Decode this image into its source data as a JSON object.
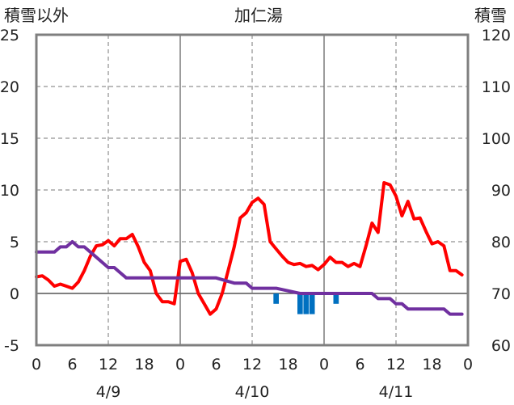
{
  "chart_data": {
    "type": "line",
    "title": "加仁湯",
    "ylabel_left": "積雪以外",
    "ylabel_right": "積雪",
    "y_left": {
      "min": -5,
      "max": 25,
      "ticks": [
        -5,
        0,
        5,
        10,
        15,
        20,
        25
      ]
    },
    "y_right": {
      "min": 60,
      "max": 120,
      "ticks": [
        60,
        70,
        80,
        90,
        100,
        110,
        120
      ]
    },
    "x": {
      "min": 0,
      "max": 72,
      "unit": "hour",
      "tick_positions": [
        0,
        6,
        12,
        18,
        24,
        30,
        36,
        42,
        48,
        54,
        60,
        66,
        72
      ],
      "tick_labels": [
        "0",
        "6",
        "12",
        "18",
        "0",
        "6",
        "12",
        "18",
        "0",
        "6",
        "12",
        "18",
        "0"
      ]
    },
    "dates": [
      {
        "label": "4/9",
        "at": 12
      },
      {
        "label": "4/10",
        "at": 36
      },
      {
        "label": "4/11",
        "at": 60
      }
    ],
    "day_boundaries": [
      24,
      48
    ],
    "grid": true,
    "series": [
      {
        "axis": "left",
        "style": "line",
        "color": "#ff0000",
        "x": [
          0,
          1,
          2,
          3,
          4,
          5,
          6,
          7,
          8,
          9,
          10,
          11,
          12,
          13,
          14,
          15,
          16,
          17,
          18,
          19,
          20,
          21,
          22,
          23,
          24,
          25,
          26,
          27,
          28,
          29,
          30,
          31,
          32,
          33,
          34,
          35,
          36,
          37,
          38,
          39,
          40,
          41,
          42,
          43,
          44,
          45,
          46,
          47,
          48,
          49,
          50,
          51,
          52,
          53,
          54,
          55,
          56,
          57,
          58,
          59,
          60,
          61,
          62,
          63,
          64,
          65,
          66,
          67,
          68,
          69,
          70,
          71,
          72
        ],
        "y": [
          1.6,
          1.7,
          1.3,
          0.7,
          0.9,
          0.7,
          0.5,
          1.1,
          2.2,
          3.6,
          4.6,
          4.7,
          5.1,
          4.6,
          5.3,
          5.3,
          5.7,
          4.5,
          3.0,
          2.2,
          0.0,
          -0.8,
          -0.8,
          -1.0,
          3.1,
          3.3,
          2.0,
          0.0,
          -1.0,
          -2.0,
          -1.5,
          0.0,
          2.2,
          4.5,
          7.3,
          7.8,
          8.8,
          9.2,
          8.6,
          5.0,
          4.3,
          3.6,
          3.0,
          2.8,
          2.9,
          2.6,
          2.7,
          2.3,
          2.8,
          3.5,
          3.0,
          3.0,
          2.6,
          2.9,
          2.6,
          4.6,
          6.8,
          5.9,
          10.7,
          10.5,
          9.4,
          7.5,
          8.9,
          7.2,
          7.3,
          6.0,
          4.8,
          5.0,
          4.6,
          2.2,
          2.2,
          1.8,
          null
        ]
      },
      {
        "axis": "right",
        "style": "line",
        "color": "#7030a0",
        "x": [
          0,
          3,
          4,
          5,
          6,
          7,
          8,
          9,
          10,
          11,
          12,
          13,
          14,
          15,
          24,
          30,
          33,
          35,
          36,
          40,
          44,
          56,
          57,
          58,
          59,
          60,
          61,
          62,
          63,
          64,
          68,
          69,
          71
        ],
        "y": [
          78,
          78,
          79,
          79,
          80,
          79,
          79,
          78,
          77,
          76,
          75,
          75,
          74,
          73,
          73,
          73,
          72,
          72,
          71,
          71,
          70,
          70,
          69,
          69,
          69,
          68,
          68,
          67,
          67,
          67,
          67,
          66,
          66
        ]
      },
      {
        "axis": "left",
        "style": "bar",
        "color": "#0070c0",
        "x": [
          40,
          44,
          45,
          46,
          50
        ],
        "y": [
          -1.0,
          -2.0,
          -2.0,
          -2.0,
          -1.0
        ]
      }
    ]
  }
}
